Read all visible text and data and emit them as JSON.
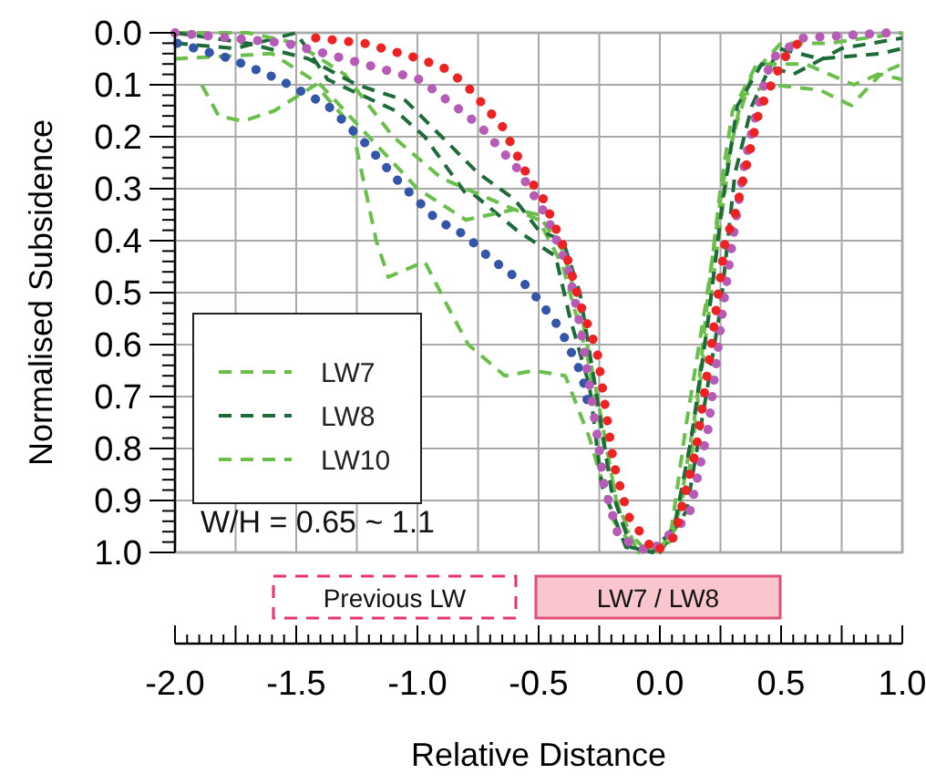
{
  "chart_data": {
    "type": "line",
    "xlabel": "Relative Distance",
    "ylabel": "Normalised Subsidence",
    "xlim": [
      -2,
      1
    ],
    "ylim": [
      1,
      0
    ],
    "xticks": [
      {
        "value": -2,
        "label": "-2.0"
      },
      {
        "value": -1.75,
        "label": null
      },
      {
        "value": -1.5,
        "label": "-1.5"
      },
      {
        "value": -1.25,
        "label": null
      },
      {
        "value": -1,
        "label": "-1.0"
      },
      {
        "value": -0.75,
        "label": null
      },
      {
        "value": -0.5,
        "label": "-0.5"
      },
      {
        "value": -0.25,
        "label": null
      },
      {
        "value": 0,
        "label": "0.0"
      },
      {
        "value": 0.25,
        "label": null
      },
      {
        "value": 0.5,
        "label": "0.5"
      },
      {
        "value": 0.75,
        "label": null
      },
      {
        "value": 1,
        "label": "1.0"
      }
    ],
    "yticks": [
      {
        "value": 0,
        "label": "0.0"
      },
      0.1,
      0.2,
      0.3,
      0.4,
      0.5,
      0.6,
      0.7,
      0.8,
      0.9,
      {
        "value": 1,
        "label": "1.0"
      }
    ],
    "grid": true,
    "legend": "bottom left",
    "annotations": [
      "W/H = 0.65 ~ 1.1",
      "Previous LW",
      "LW7 / LW8"
    ],
    "series": [
      {
        "name": "LW7",
        "color": "#6abf4b",
        "line_style": "dashed",
        "x": [
          -1.89,
          -1.82,
          -1.72,
          -1.59,
          -1.42,
          -1.27,
          -1.17,
          -1.12,
          -0.97,
          -0.86,
          -0.79,
          -0.64,
          -0.52,
          -0.39,
          -0.29,
          -0.19,
          -0.09,
          0.04,
          0.11,
          0.19,
          0.26,
          0.34,
          0.46,
          0.66,
          0.79,
          0.91,
          1.0
        ],
        "values": [
          0.1,
          0.16,
          0.17,
          0.15,
          0.1,
          0.18,
          0.4,
          0.47,
          0.44,
          0.54,
          0.6,
          0.66,
          0.65,
          0.66,
          0.78,
          0.94,
          1.0,
          0.98,
          0.75,
          0.52,
          0.29,
          0.12,
          0.1,
          0.11,
          0.14,
          0.08,
          0.09
        ]
      },
      {
        "name": "LW8",
        "color": "#1e6b3a",
        "line_style": "dashed",
        "x": [
          -2,
          -1.75,
          -1.5,
          -1.37,
          -1.09,
          -0.97,
          -0.8,
          -0.77,
          -0.59,
          -0.43,
          -0.37,
          -0.29,
          -0.24,
          -0.14,
          0.0,
          0.11,
          0.19,
          0.25,
          0.31,
          0.38,
          0.49,
          0.66,
          0.91,
          1.0
        ],
        "values": [
          0.02,
          0.03,
          0.0,
          0.09,
          0.15,
          0.2,
          0.31,
          0.31,
          0.38,
          0.43,
          0.55,
          0.68,
          0.87,
          0.99,
          1.0,
          0.92,
          0.7,
          0.53,
          0.27,
          0.14,
          0.03,
          0.05,
          0.04,
          0.03
        ]
      },
      {
        "name": "LW10",
        "color": "#6abf4b",
        "line_style": "dashed",
        "x": [
          -2,
          -1.7,
          -1.5,
          -1.3,
          -1.1,
          -0.9,
          -0.7,
          -0.5,
          -0.4,
          -0.3,
          -0.22,
          -0.15,
          -0.05,
          0.05,
          0.12,
          0.18,
          0.24,
          0.3,
          0.38,
          0.5,
          0.7,
          1.0
        ],
        "values": [
          0.0,
          0.0,
          0.02,
          0.08,
          0.2,
          0.28,
          0.32,
          0.36,
          0.45,
          0.62,
          0.82,
          0.95,
          1.0,
          0.97,
          0.85,
          0.62,
          0.4,
          0.2,
          0.08,
          0.02,
          0.02,
          0.0
        ]
      },
      {
        "color": "#6abf4b",
        "line_style": "dashed",
        "x": [
          -2,
          -1.6,
          -1.4,
          -1.2,
          -1.0,
          -0.8,
          -0.6,
          -0.5,
          -0.4,
          -0.32,
          -0.25,
          -0.18,
          -0.1,
          0.0,
          0.08,
          0.15,
          0.2,
          0.25,
          0.3,
          0.4,
          0.6,
          0.8,
          1.0
        ],
        "values": [
          0.05,
          0.04,
          0.1,
          0.2,
          0.3,
          0.36,
          0.34,
          0.35,
          0.42,
          0.55,
          0.72,
          0.9,
          0.99,
          1.0,
          0.92,
          0.72,
          0.5,
          0.3,
          0.15,
          0.06,
          0.06,
          0.1,
          0.06
        ]
      },
      {
        "color": "#1e6b3a",
        "line_style": "dashed",
        "x": [
          -2,
          -1.7,
          -1.45,
          -1.25,
          -1.05,
          -0.9,
          -0.75,
          -0.6,
          -0.5,
          -0.4,
          -0.33,
          -0.26,
          -0.2,
          -0.12,
          -0.03,
          0.06,
          0.13,
          0.2,
          0.26,
          0.32,
          0.42,
          0.55,
          0.75,
          1.0
        ],
        "values": [
          0.0,
          0.02,
          0.05,
          0.1,
          0.13,
          0.2,
          0.27,
          0.32,
          0.38,
          0.4,
          0.5,
          0.7,
          0.88,
          0.99,
          1.0,
          0.95,
          0.78,
          0.55,
          0.32,
          0.14,
          0.06,
          0.08,
          0.03,
          0.01
        ]
      },
      {
        "color": "#3355aa",
        "line_style": "dotted",
        "x": [
          -1.99,
          -1.77,
          -1.57,
          -1.37,
          -1.22,
          -1.07,
          -0.92,
          -0.8,
          -0.71,
          -0.54,
          -0.41,
          -0.32,
          -0.29
        ],
        "values": [
          0.02,
          0.05,
          0.09,
          0.14,
          0.21,
          0.29,
          0.36,
          0.39,
          0.43,
          0.49,
          0.57,
          0.66,
          0.73
        ]
      },
      {
        "color": "#b65bb6",
        "line_style": "dotted",
        "x": [
          -2,
          -1.54,
          -1.22,
          -0.99,
          -0.82,
          -0.74,
          -0.59,
          -0.47,
          -0.38,
          -0.33,
          -0.26,
          -0.23,
          -0.17,
          -0.04,
          0.12,
          0.2,
          0.26,
          0.3,
          0.35,
          0.4,
          0.46,
          0.59,
          0.94
        ],
        "values": [
          0.0,
          0.02,
          0.06,
          0.09,
          0.15,
          0.18,
          0.26,
          0.35,
          0.45,
          0.56,
          0.77,
          0.87,
          0.97,
          1.0,
          0.93,
          0.76,
          0.53,
          0.4,
          0.25,
          0.15,
          0.05,
          0.01,
          0.0
        ]
      },
      {
        "color": "#ee2222",
        "line_style": "dotted",
        "x": [
          -1.42,
          -1.22,
          -0.99,
          -0.88,
          -0.8,
          -0.65,
          -0.54,
          -0.48,
          -0.39,
          -0.33,
          -0.26,
          -0.19,
          -0.13,
          -0.02,
          0.06,
          0.15,
          0.21,
          0.27,
          0.31,
          0.36,
          0.41,
          0.51,
          0.59
        ],
        "values": [
          0.01,
          0.02,
          0.05,
          0.07,
          0.1,
          0.18,
          0.28,
          0.32,
          0.42,
          0.52,
          0.61,
          0.83,
          0.93,
          1.0,
          0.97,
          0.8,
          0.61,
          0.4,
          0.35,
          0.25,
          0.15,
          0.05,
          0.01
        ]
      }
    ]
  }
}
